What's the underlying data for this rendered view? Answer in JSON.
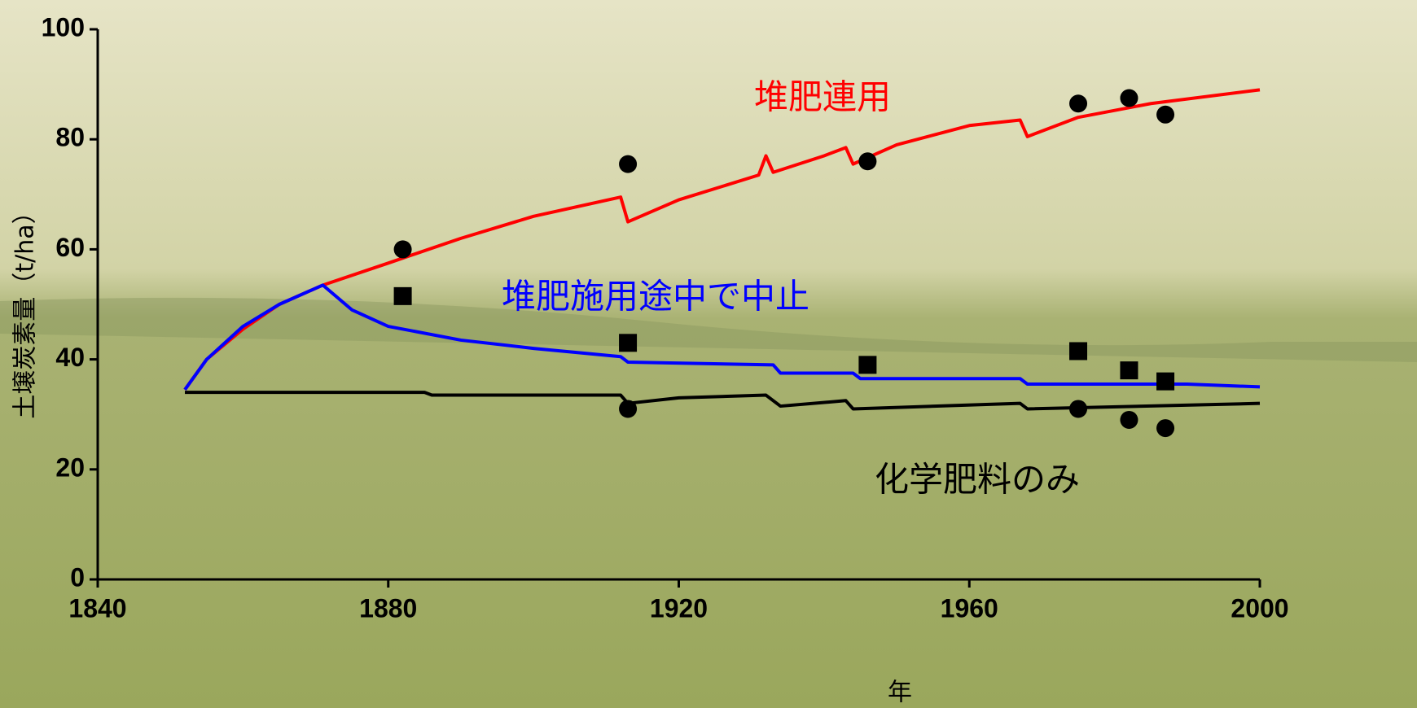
{
  "chart_data": {
    "type": "line",
    "xlabel": "年",
    "ylabel": "土壌炭素量（t/ha）",
    "xlim": [
      1840,
      2000
    ],
    "ylim": [
      0,
      100
    ],
    "xticks": [
      1840,
      1880,
      1920,
      1960,
      2000
    ],
    "yticks": [
      0,
      20,
      40,
      60,
      80,
      100
    ],
    "series": [
      {
        "name": "堆肥連用",
        "color": "#ff0000",
        "x": [
          1852,
          1855,
          1860,
          1865,
          1871,
          1880,
          1890,
          1900,
          1912,
          1913,
          1920,
          1931,
          1932,
          1933,
          1940,
          1943,
          1944,
          1950,
          1960,
          1967,
          1968,
          1975,
          1985,
          2000
        ],
        "values": [
          34.5,
          40,
          45.5,
          50,
          53.5,
          57.5,
          62,
          66,
          69.5,
          65,
          69,
          73.5,
          77,
          74,
          77,
          78.5,
          75.5,
          79,
          82.5,
          83.5,
          80.5,
          84,
          86.5,
          89
        ]
      },
      {
        "name": "堆肥施用途中で中止",
        "color": "#0000ff",
        "x": [
          1852,
          1855,
          1860,
          1865,
          1871,
          1875,
          1880,
          1890,
          1900,
          1912,
          1913,
          1933,
          1934,
          1944,
          1945,
          1967,
          1968,
          1990,
          2000
        ],
        "values": [
          34.5,
          40,
          46,
          50,
          53.5,
          49,
          46,
          43.5,
          42,
          40.5,
          39.5,
          39,
          37.5,
          37.5,
          36.5,
          36.5,
          35.5,
          35.5,
          35
        ]
      },
      {
        "name": "化学肥料のみ",
        "color": "#000000",
        "x": [
          1852,
          1885,
          1886,
          1912,
          1913,
          1920,
          1932,
          1934,
          1943,
          1944,
          1967,
          1968,
          2000
        ],
        "values": [
          34,
          34,
          33.5,
          33.5,
          32,
          33,
          33.5,
          31.5,
          32.5,
          31,
          32,
          31,
          32
        ]
      }
    ],
    "points": [
      {
        "marker": "circle",
        "color": "#000000",
        "x": [
          1882,
          1913,
          1946,
          1975,
          1982,
          1987,
          1913,
          1975,
          1982,
          1987
        ],
        "values": [
          60,
          75.5,
          76,
          86.5,
          87.5,
          84.5,
          31,
          31,
          29,
          27.5
        ]
      },
      {
        "marker": "square",
        "color": "#000000",
        "x": [
          1882,
          1913,
          1946,
          1975,
          1982,
          1987
        ],
        "values": [
          51.5,
          43,
          39,
          41.5,
          38,
          36
        ]
      }
    ]
  }
}
